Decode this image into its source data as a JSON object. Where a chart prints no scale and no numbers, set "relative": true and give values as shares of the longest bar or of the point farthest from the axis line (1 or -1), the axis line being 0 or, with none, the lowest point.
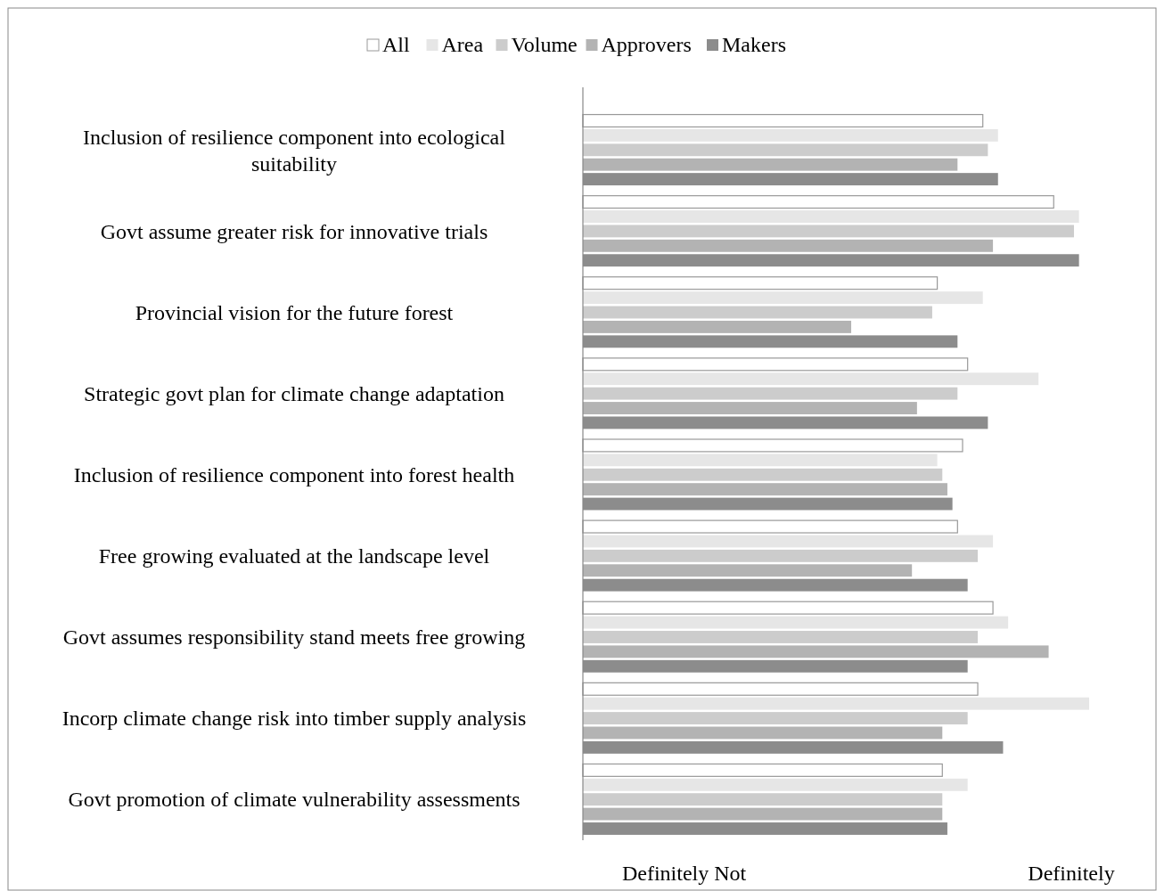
{
  "chart_data": {
    "type": "bar",
    "orientation": "horizontal",
    "relative": true,
    "legend": "top",
    "grid": false,
    "categories": [
      "Inclusion of resilience component into ecological suitability",
      "Govt assume greater risk for innovative trials",
      "Provincial vision for the future forest",
      "Strategic govt plan for climate change adaptation",
      "Inclusion of resilience component into forest health",
      "Free growing evaluated at the landscape level",
      "Govt assumes responsibility stand meets free growing",
      "Incorp climate change risk into timber supply analysis",
      "Govt promotion of climate vulnerability assessments"
    ],
    "series": [
      {
        "name": "All",
        "color": "#ffffff",
        "values": [
          0.79,
          0.93,
          0.7,
          0.76,
          0.75,
          0.74,
          0.81,
          0.78,
          0.71
        ]
      },
      {
        "name": "Area",
        "color": "#e6e6e6",
        "values": [
          0.82,
          0.98,
          0.79,
          0.9,
          0.7,
          0.81,
          0.84,
          1,
          0.76
        ]
      },
      {
        "name": "Volume",
        "color": "#cccccc",
        "values": [
          0.8,
          0.97,
          0.69,
          0.74,
          0.71,
          0.78,
          0.78,
          0.76,
          0.71
        ]
      },
      {
        "name": "Approvers",
        "color": "#b3b3b3",
        "values": [
          0.74,
          0.81,
          0.53,
          0.66,
          0.72,
          0.65,
          0.92,
          0.71,
          0.71
        ]
      },
      {
        "name": "Makers",
        "color": "#8c8c8c",
        "values": [
          0.82,
          0.98,
          0.74,
          0.8,
          0.73,
          0.76,
          0.76,
          0.83,
          0.72
        ]
      }
    ],
    "annotations": [
      "Definitely Not",
      "Definitely"
    ]
  }
}
